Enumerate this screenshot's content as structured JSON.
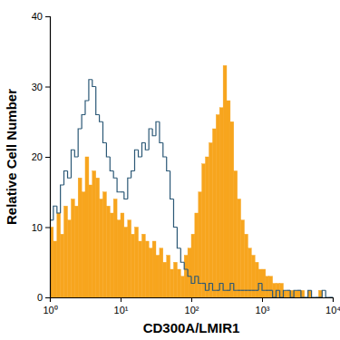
{
  "chart_data": {
    "type": "histogram",
    "x_label": "CD300A/LMIR1",
    "y_label": "Relative Cell Number",
    "log": "x",
    "bins": [
      1,
      1.12,
      1.26,
      1.41,
      1.58,
      1.78,
      2,
      2.24,
      2.51,
      2.82,
      3.16,
      3.55,
      3.98,
      4.47,
      5.01,
      5.62,
      6.31,
      7.08,
      7.94,
      8.91,
      10,
      11.2,
      12.6,
      14.1,
      15.8,
      17.8,
      20,
      22.4,
      25.1,
      28.2,
      31.6,
      35.5,
      39.8,
      44.7,
      50.1,
      56.2,
      63.1,
      70.8,
      79.4,
      89.1,
      100,
      112,
      126,
      141,
      158,
      178,
      200,
      224,
      251,
      282,
      316,
      355,
      398,
      447,
      501,
      562,
      631,
      708,
      794,
      891,
      1000,
      1120,
      1260,
      1410,
      1580,
      1780,
      2000,
      2240,
      2510,
      2820,
      3160,
      3550,
      3980,
      4470,
      5010,
      5620,
      6310,
      7080,
      7940,
      8910,
      10000
    ],
    "series": [
      {
        "type": "bar",
        "color": "#f7a51e",
        "values": [
          10,
          8,
          12,
          9,
          13,
          11,
          14,
          13,
          17,
          15,
          20,
          16,
          18,
          17,
          14,
          15,
          13,
          12,
          14,
          11,
          12,
          10,
          11,
          9,
          10,
          8,
          9,
          8,
          7,
          8,
          6,
          7,
          5,
          6,
          4,
          5,
          4,
          3,
          6,
          7,
          9,
          12,
          15,
          19,
          20,
          22,
          24,
          26,
          27,
          33,
          28,
          25,
          18,
          14,
          11,
          9,
          7,
          6,
          5,
          4,
          4,
          3,
          3,
          2,
          2,
          2,
          1,
          1,
          1,
          1,
          1,
          1,
          0,
          1,
          0,
          0,
          1,
          0,
          0,
          0
        ]
      },
      {
        "type": "step",
        "color": "#2b5876",
        "values": [
          11,
          13,
          12,
          16,
          18,
          17,
          21,
          20,
          24,
          26,
          28,
          31,
          30,
          26,
          25,
          22,
          20,
          18,
          17,
          15,
          15,
          14,
          17,
          18,
          21,
          20,
          22,
          21,
          24,
          23,
          25,
          22,
          20,
          18,
          14,
          10,
          7,
          5,
          4,
          3,
          2,
          3,
          2,
          2,
          1,
          2,
          1,
          1,
          2,
          1,
          1,
          2,
          1,
          1,
          1,
          1,
          1,
          1,
          1,
          2,
          1,
          1,
          1,
          0,
          1,
          0,
          1,
          1,
          0,
          1,
          1,
          0,
          0,
          1,
          0,
          0,
          0,
          1,
          0,
          0
        ]
      }
    ],
    "xlim": [
      1,
      10000
    ],
    "xticks": [
      {
        "value": 1,
        "label": "10⁰"
      },
      {
        "value": 10,
        "label": "10¹"
      },
      {
        "value": 100,
        "label": "10²"
      },
      {
        "value": 1000,
        "label": "10³"
      },
      {
        "value": 10000,
        "label": "10⁴"
      }
    ],
    "ylim": [
      0,
      40
    ],
    "yticks": [
      0,
      10,
      20,
      30,
      40
    ]
  }
}
